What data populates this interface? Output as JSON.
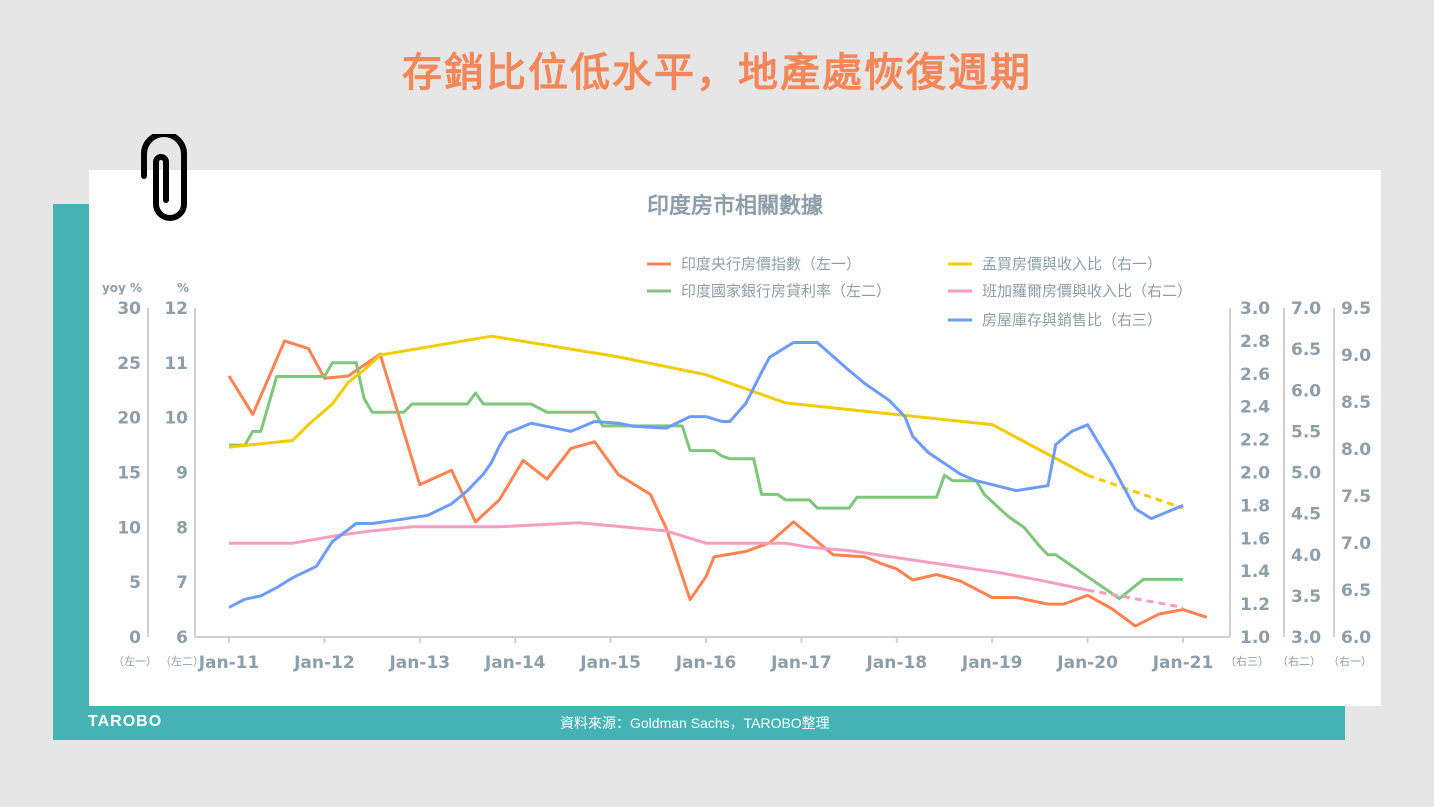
{
  "headline": "存銷比位低水平，地產處恢復週期",
  "footer": {
    "logo": "TAROBO",
    "source": "資料來源：Goldman Sachs，TAROBO整理"
  },
  "icons": {
    "clip": "paperclip-icon"
  },
  "colors": {
    "headline": "#f4875a",
    "teal": "#45b3b4"
  },
  "chart_data": {
    "type": "line",
    "title": "印度房市相關數據",
    "x_ticks": [
      "Jan-11",
      "Jan-12",
      "Jan-13",
      "Jan-14",
      "Jan-15",
      "Jan-16",
      "Jan-17",
      "Jan-18",
      "Jan-19",
      "Jan-20",
      "Jan-21"
    ],
    "xlim": [
      "2011-01",
      "2021-06"
    ],
    "grid": false,
    "legend_position": "top-right",
    "axes": {
      "left1": {
        "unit": "yoy %",
        "tag": "（左一）",
        "ylim": [
          0,
          30
        ],
        "ticks": [
          "0",
          "5",
          "10",
          "15",
          "20",
          "25",
          "30"
        ]
      },
      "left2": {
        "unit": "%",
        "tag": "（左二）",
        "ylim": [
          6,
          12
        ],
        "ticks": [
          "6",
          "7",
          "8",
          "9",
          "10",
          "11",
          "12"
        ]
      },
      "right3": {
        "tag": "（右三）",
        "ylim": [
          1.0,
          3.0
        ],
        "ticks": [
          "1.0",
          "1.2",
          "1.4",
          "1.6",
          "1.8",
          "2.0",
          "2.2",
          "2.4",
          "2.6",
          "2.8",
          "3.0"
        ]
      },
      "right2": {
        "tag": "（右二）",
        "ylim": [
          3.0,
          7.0
        ],
        "ticks": [
          "3.0",
          "3.5",
          "4.0",
          "4.5",
          "5.0",
          "5.5",
          "6.0",
          "6.5",
          "7.0"
        ]
      },
      "right1": {
        "tag": "（右一）",
        "ylim": [
          6.0,
          9.5
        ],
        "ticks": [
          "6.0",
          "6.5",
          "7.0",
          "7.5",
          "8.0",
          "8.5",
          "9.0",
          "9.5"
        ]
      }
    },
    "series": [
      {
        "name": "印度央行房價指數（左一）",
        "axis": "left1",
        "color": "#ff8352",
        "x": [
          "2011-01",
          "2011-04",
          "2011-08",
          "2011-11",
          "2012-01",
          "2012-04",
          "2012-08",
          "2013-01",
          "2013-05",
          "2013-08",
          "2013-11",
          "2014-02",
          "2014-05",
          "2014-08",
          "2014-11",
          "2015-02",
          "2015-06",
          "2015-08",
          "2015-11",
          "2016-01",
          "2016-02",
          "2016-06",
          "2016-09",
          "2016-12",
          "2017-03",
          "2017-05",
          "2017-09",
          "2017-11",
          "2018-01",
          "2018-03",
          "2018-06",
          "2018-09",
          "2019-01",
          "2019-04",
          "2019-08",
          "2019-10",
          "2020-01",
          "2020-04",
          "2020-07",
          "2020-10",
          "2021-01",
          "2021-04"
        ],
        "y": [
          23.8,
          20.3,
          27.0,
          26.3,
          23.6,
          23.8,
          25.8,
          13.9,
          15.2,
          10.5,
          12.5,
          16.1,
          14.4,
          17.2,
          17.8,
          14.8,
          13.0,
          9.9,
          3.4,
          5.5,
          7.3,
          7.8,
          8.6,
          10.5,
          8.7,
          7.5,
          7.3,
          6.7,
          6.2,
          5.2,
          5.7,
          5.1,
          3.6,
          3.6,
          3.0,
          3.0,
          3.8,
          2.6,
          1.0,
          2.1,
          2.5,
          1.8
        ]
      },
      {
        "name": "印度國家銀行房貸利率（左二）",
        "axis": "left2",
        "color": "#7dc67a",
        "x": [
          "2011-01",
          "2011-03",
          "2011-04",
          "2011-05",
          "2011-07",
          "2012-01",
          "2012-02",
          "2012-05",
          "2012-06",
          "2012-07",
          "2012-11",
          "2012-12",
          "2013-07",
          "2013-08",
          "2013-09",
          "2014-03",
          "2014-05",
          "2014-11",
          "2014-12",
          "2015-10",
          "2015-11",
          "2016-02",
          "2016-03",
          "2016-04",
          "2016-07",
          "2016-08",
          "2016-10",
          "2016-11",
          "2017-02",
          "2017-03",
          "2017-07",
          "2017-08",
          "2018-06",
          "2018-07",
          "2018-08",
          "2018-11",
          "2018-12",
          "2019-03",
          "2019-05",
          "2019-07",
          "2019-08",
          "2019-09",
          "2020-02",
          "2020-05",
          "2020-08",
          "2021-01"
        ],
        "y": [
          9.5,
          9.5,
          9.75,
          9.75,
          10.75,
          10.75,
          11.0,
          11.0,
          10.35,
          10.1,
          10.1,
          10.25,
          10.25,
          10.45,
          10.25,
          10.25,
          10.1,
          10.1,
          9.85,
          9.85,
          9.4,
          9.4,
          9.3,
          9.25,
          9.25,
          8.6,
          8.6,
          8.5,
          8.5,
          8.35,
          8.35,
          8.55,
          8.55,
          8.95,
          8.85,
          8.85,
          8.6,
          8.2,
          8.0,
          7.65,
          7.5,
          7.5,
          7.0,
          6.7,
          7.05,
          7.05
        ]
      },
      {
        "name": "孟買房價與收入比（右一）",
        "axis": "right1",
        "color": "#f2cc00",
        "forecast_from": "2020-01",
        "x": [
          "2011-01",
          "2011-09",
          "2011-11",
          "2012-02",
          "2012-04",
          "2012-06",
          "2012-08",
          "2013-10",
          "2015-02",
          "2016-01",
          "2016-11",
          "2019-01",
          "2020-01",
          "2021-01"
        ],
        "y": [
          8.02,
          8.09,
          8.26,
          8.48,
          8.71,
          8.84,
          9.0,
          9.2,
          8.98,
          8.79,
          8.49,
          8.26,
          7.72,
          7.37
        ]
      },
      {
        "name": "班加羅爾房價與收入比（右二）",
        "axis": "right2",
        "color": "#f59ec0",
        "forecast_from": "2020-01",
        "x": [
          "2011-01",
          "2011-09",
          "2012-03",
          "2012-07",
          "2012-12",
          "2013-11",
          "2014-09",
          "2015-08",
          "2016-01",
          "2016-11",
          "2017-02",
          "2017-07",
          "2018-02",
          "2019-02",
          "2019-07",
          "2020-01",
          "2021-01"
        ],
        "y": [
          4.14,
          4.14,
          4.24,
          4.29,
          4.34,
          4.34,
          4.39,
          4.29,
          4.14,
          4.14,
          4.09,
          4.05,
          3.95,
          3.78,
          3.69,
          3.57,
          3.36
        ]
      },
      {
        "name": "房屋庫存與銷售比（右三）",
        "axis": "right3",
        "color": "#6d9cf7",
        "x": [
          "2011-01",
          "2011-03",
          "2011-05",
          "2011-07",
          "2011-09",
          "2011-12",
          "2012-02",
          "2012-05",
          "2012-07",
          "2012-10",
          "2013-02",
          "2013-05",
          "2013-07",
          "2013-09",
          "2013-10",
          "2013-11",
          "2013-12",
          "2014-03",
          "2014-08",
          "2014-11",
          "2015-02",
          "2015-04",
          "2015-08",
          "2015-11",
          "2016-01",
          "2016-03",
          "2016-04",
          "2016-06",
          "2016-08",
          "2016-09",
          "2016-12",
          "2017-03",
          "2017-07",
          "2017-09",
          "2017-12",
          "2018-02",
          "2018-03",
          "2018-05",
          "2018-09",
          "2018-11",
          "2019-04",
          "2019-08",
          "2019-09",
          "2019-11",
          "2020-01",
          "2020-04",
          "2020-07",
          "2020-09",
          "2021-01"
        ],
        "y": [
          1.18,
          1.23,
          1.25,
          1.3,
          1.36,
          1.43,
          1.58,
          1.69,
          1.69,
          1.71,
          1.74,
          1.81,
          1.89,
          1.99,
          2.06,
          2.16,
          2.24,
          2.3,
          2.25,
          2.31,
          2.3,
          2.28,
          2.27,
          2.34,
          2.34,
          2.31,
          2.31,
          2.42,
          2.61,
          2.7,
          2.79,
          2.79,
          2.62,
          2.54,
          2.44,
          2.34,
          2.22,
          2.12,
          1.99,
          1.95,
          1.89,
          1.92,
          2.17,
          2.25,
          2.29,
          2.05,
          1.78,
          1.72,
          1.8
        ]
      }
    ]
  }
}
